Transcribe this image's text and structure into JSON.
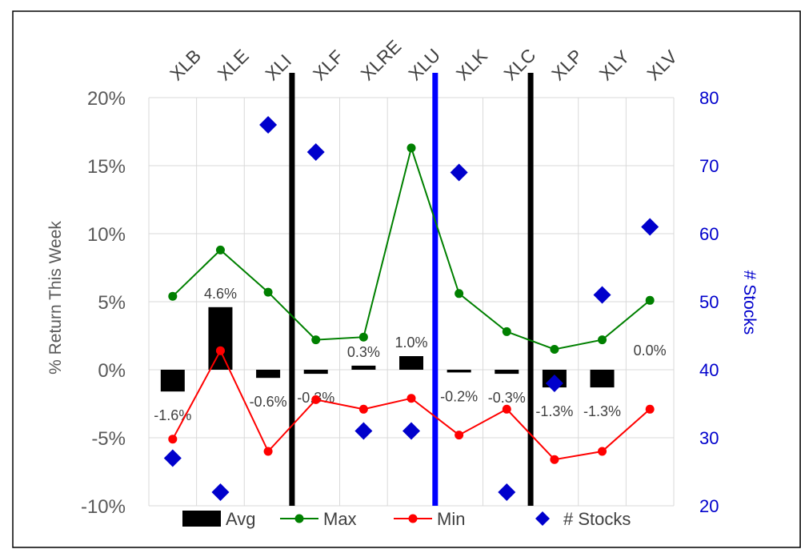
{
  "chart_data": {
    "type": "bar+line+scatter",
    "categories": [
      "XLB",
      "XLE",
      "XLI",
      "XLF",
      "XLRE",
      "XLU",
      "XLK",
      "XLC",
      "XLP",
      "XLY",
      "XLV"
    ],
    "series": [
      {
        "name": "Avg",
        "kind": "bar",
        "axis": "left",
        "color": "#000000",
        "values": [
          -1.6,
          4.6,
          -0.6,
          -0.3,
          0.3,
          1.0,
          -0.2,
          -0.3,
          -1.3,
          -1.3,
          0.0
        ],
        "labels": [
          "-1.6%",
          "4.6%",
          "-0.6%",
          "-0.3%",
          "0.3%",
          "1.0%",
          "-0.2%",
          "-0.3%",
          "-1.3%",
          "-1.3%",
          "0.0%"
        ]
      },
      {
        "name": "Max",
        "kind": "line",
        "axis": "left",
        "color": "#008000",
        "values": [
          5.4,
          8.8,
          5.7,
          2.2,
          2.4,
          16.3,
          5.6,
          2.8,
          1.5,
          2.2,
          5.1
        ]
      },
      {
        "name": "Min",
        "kind": "line",
        "axis": "left",
        "color": "#ff0000",
        "values": [
          -5.1,
          1.4,
          -6.0,
          -2.2,
          -2.9,
          -2.1,
          -4.8,
          -2.9,
          -6.6,
          -6.0,
          -2.9
        ]
      },
      {
        "name": "# Stocks",
        "kind": "scatter",
        "axis": "right",
        "color": "#0000cc",
        "marker": "diamond",
        "values": [
          27,
          22,
          76,
          72,
          31,
          31,
          69,
          22,
          38,
          51,
          61
        ]
      }
    ],
    "y_left": {
      "label": "% Return This Week",
      "min": -10,
      "max": 20,
      "ticks": [
        {
          "value": 20,
          "label": "20%"
        },
        {
          "value": 15,
          "label": "15%"
        },
        {
          "value": 10,
          "label": "10%"
        },
        {
          "value": 5,
          "label": "5%"
        },
        {
          "value": 0,
          "label": "0%"
        },
        {
          "value": -5,
          "label": "-5%"
        },
        {
          "value": -10,
          "label": "-10%"
        }
      ]
    },
    "y_right": {
      "label": "# Stocks",
      "min": 20,
      "max": 80,
      "color": "#0000cc",
      "ticks": [
        {
          "value": 80,
          "label": "80"
        },
        {
          "value": 70,
          "label": "70"
        },
        {
          "value": 60,
          "label": "60"
        },
        {
          "value": 50,
          "label": "50"
        },
        {
          "value": 40,
          "label": "40"
        },
        {
          "value": 30,
          "label": "30"
        },
        {
          "value": 20,
          "label": "20"
        }
      ]
    },
    "separators": [
      {
        "between": [
          "XLI",
          "XLF"
        ],
        "color": "#000000"
      },
      {
        "between": [
          "XLU",
          "XLK"
        ],
        "color": "#0000ff"
      },
      {
        "between": [
          "XLC",
          "XLP"
        ],
        "color": "#000000"
      }
    ],
    "legend": {
      "placement": "bottom",
      "items": [
        {
          "name": "Avg",
          "style": "bar",
          "color": "#000000"
        },
        {
          "name": "Max",
          "style": "line",
          "color": "#008000"
        },
        {
          "name": "Min",
          "style": "line",
          "color": "#ff0000"
        },
        {
          "name": "# Stocks",
          "style": "diamond",
          "color": "#0000cc"
        }
      ]
    },
    "grid": true
  }
}
